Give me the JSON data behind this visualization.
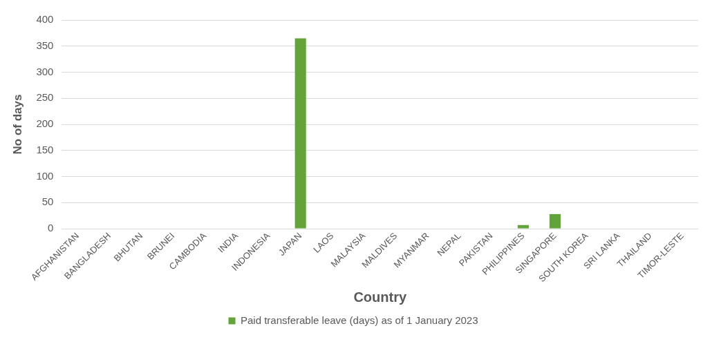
{
  "chart_data": {
    "type": "bar",
    "xlabel": "Country",
    "ylabel": "No of days",
    "categories": [
      "AFGHANISTAN",
      "BANGLADESH",
      "BHUTAN",
      "BRUNEI",
      "CAMBODIA",
      "INDIA",
      "INDONESIA",
      "JAPAN",
      "LAOS",
      "MALAYSIA",
      "MALDIVES",
      "MYANMAR",
      "NEPAL",
      "PAKISTAN",
      "PHILIPPINES",
      "SINGAPORE",
      "SOUTH KOREA",
      "SRI LANKA",
      "THAILAND",
      "TIMOR-LESTE"
    ],
    "series": [
      {
        "name": "Paid transferable leave (days) as of 1 January 2023",
        "color": "#62a33a",
        "values": [
          0,
          0,
          0,
          0,
          0,
          0,
          0,
          365,
          0,
          0,
          0,
          0,
          0,
          0,
          7,
          28,
          0,
          0,
          0,
          0
        ]
      }
    ],
    "ylim": [
      0,
      400
    ],
    "yticks": [
      0,
      50,
      100,
      150,
      200,
      250,
      300,
      350,
      400
    ],
    "grid": "y",
    "legend": "bottom"
  }
}
